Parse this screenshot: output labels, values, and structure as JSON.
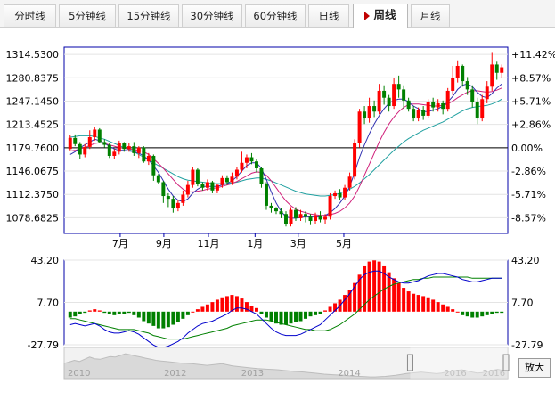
{
  "tabs": [
    {
      "label": "分时线",
      "active": false
    },
    {
      "label": "5分钟线",
      "active": false
    },
    {
      "label": "15分钟线",
      "active": false
    },
    {
      "label": "30分钟线",
      "active": false
    },
    {
      "label": "60分钟线",
      "active": false
    },
    {
      "label": "日线",
      "active": false
    },
    {
      "label": "周线",
      "active": true
    },
    {
      "label": "月线",
      "active": false
    }
  ],
  "zoom_label": "放大",
  "colors": {
    "up": "#ff0000",
    "down": "#008000",
    "ma1": "#3030b0",
    "ma2": "#d0207a",
    "ma3": "#20a0a0",
    "dif": "#0000cc",
    "dea": "#008000",
    "axis": "#0000aa"
  },
  "chart_data": [
    {
      "type": "candlestick",
      "price_ticks": [
        "1314.5300",
        "1280.8375",
        "1247.1450",
        "1213.4525",
        "1179.7600",
        "1146.0675",
        "1112.3750",
        "1078.6825"
      ],
      "pct_ticks": [
        "+11.42%",
        "+8.57%",
        "+5.71%",
        "+2.86%",
        "0.00%",
        "-2.86%",
        "-5.71%",
        "-8.57%"
      ],
      "ylim": [
        1056,
        1325
      ],
      "baseline": 1179.76,
      "month_labels": [
        "7月",
        "9月",
        "11月",
        "1月",
        "3月",
        "5月"
      ],
      "month_positions": [
        10.2,
        19.1,
        28.2,
        37.7,
        46.5,
        55.8
      ],
      "candles": [
        [
          1178,
          1194,
          1176,
          1198
        ],
        [
          1194,
          1185,
          1182,
          1199
        ],
        [
          1185,
          1170,
          1164,
          1188
        ],
        [
          1170,
          1181,
          1166,
          1185
        ],
        [
          1181,
          1195,
          1178,
          1205
        ],
        [
          1195,
          1206,
          1190,
          1210
        ],
        [
          1206,
          1188,
          1186,
          1208
        ],
        [
          1188,
          1184,
          1180,
          1192
        ],
        [
          1184,
          1168,
          1165,
          1186
        ],
        [
          1168,
          1174,
          1164,
          1178
        ],
        [
          1174,
          1186,
          1170,
          1190
        ],
        [
          1186,
          1178,
          1174,
          1188
        ],
        [
          1178,
          1182,
          1174,
          1186
        ],
        [
          1182,
          1172,
          1168,
          1188
        ],
        [
          1172,
          1180,
          1165,
          1182
        ],
        [
          1180,
          1160,
          1158,
          1182
        ],
        [
          1160,
          1168,
          1155,
          1172
        ],
        [
          1168,
          1140,
          1132,
          1170
        ],
        [
          1140,
          1130,
          1128,
          1142
        ],
        [
          1130,
          1110,
          1100,
          1132
        ],
        [
          1110,
          1106,
          1094,
          1114
        ],
        [
          1106,
          1092,
          1086,
          1110
        ],
        [
          1092,
          1100,
          1088,
          1104
        ],
        [
          1100,
          1112,
          1096,
          1118
        ],
        [
          1112,
          1126,
          1108,
          1132
        ],
        [
          1126,
          1148,
          1122,
          1152
        ],
        [
          1148,
          1128,
          1124,
          1150
        ],
        [
          1128,
          1122,
          1118,
          1130
        ],
        [
          1122,
          1130,
          1118,
          1134
        ],
        [
          1130,
          1118,
          1114,
          1132
        ],
        [
          1118,
          1126,
          1114,
          1128
        ],
        [
          1126,
          1136,
          1122,
          1140
        ],
        [
          1136,
          1130,
          1126,
          1140
        ],
        [
          1130,
          1138,
          1126,
          1144
        ],
        [
          1138,
          1148,
          1134,
          1152
        ],
        [
          1148,
          1158,
          1144,
          1174
        ],
        [
          1158,
          1166,
          1150,
          1170
        ],
        [
          1166,
          1160,
          1156,
          1172
        ],
        [
          1160,
          1150,
          1144,
          1164
        ],
        [
          1150,
          1128,
          1122,
          1152
        ],
        [
          1128,
          1096,
          1090,
          1130
        ],
        [
          1096,
          1092,
          1086,
          1100
        ],
        [
          1092,
          1088,
          1084,
          1094
        ],
        [
          1088,
          1084,
          1078,
          1092
        ],
        [
          1084,
          1070,
          1066,
          1088
        ],
        [
          1070,
          1090,
          1066,
          1094
        ],
        [
          1090,
          1078,
          1074,
          1094
        ],
        [
          1078,
          1084,
          1074,
          1090
        ],
        [
          1084,
          1080,
          1072,
          1088
        ],
        [
          1080,
          1074,
          1068,
          1084
        ],
        [
          1074,
          1082,
          1070,
          1086
        ],
        [
          1082,
          1076,
          1072,
          1088
        ],
        [
          1076,
          1080,
          1070,
          1084
        ],
        [
          1080,
          1110,
          1076,
          1114
        ],
        [
          1110,
          1114,
          1106,
          1118
        ],
        [
          1114,
          1108,
          1104,
          1120
        ],
        [
          1108,
          1122,
          1104,
          1126
        ],
        [
          1122,
          1138,
          1118,
          1144
        ],
        [
          1138,
          1186,
          1134,
          1192
        ],
        [
          1186,
          1232,
          1180,
          1236
        ],
        [
          1232,
          1222,
          1214,
          1240
        ],
        [
          1222,
          1240,
          1216,
          1252
        ],
        [
          1240,
          1232,
          1224,
          1248
        ],
        [
          1232,
          1262,
          1228,
          1272
        ],
        [
          1262,
          1252,
          1242,
          1270
        ],
        [
          1252,
          1240,
          1232,
          1256
        ],
        [
          1240,
          1272,
          1236,
          1280
        ],
        [
          1272,
          1264,
          1252,
          1284
        ],
        [
          1264,
          1248,
          1236,
          1270
        ],
        [
          1248,
          1236,
          1232,
          1252
        ],
        [
          1236,
          1222,
          1218,
          1240
        ],
        [
          1222,
          1234,
          1218,
          1238
        ],
        [
          1234,
          1226,
          1220,
          1240
        ],
        [
          1226,
          1246,
          1222,
          1250
        ],
        [
          1246,
          1238,
          1232,
          1252
        ],
        [
          1238,
          1244,
          1232,
          1250
        ],
        [
          1244,
          1236,
          1228,
          1248
        ],
        [
          1236,
          1262,
          1232,
          1266
        ],
        [
          1262,
          1280,
          1256,
          1298
        ],
        [
          1280,
          1298,
          1274,
          1306
        ],
        [
          1298,
          1276,
          1268,
          1300
        ],
        [
          1276,
          1264,
          1256,
          1282
        ],
        [
          1264,
          1246,
          1238,
          1270
        ],
        [
          1246,
          1222,
          1214,
          1252
        ],
        [
          1222,
          1250,
          1218,
          1256
        ],
        [
          1250,
          1268,
          1244,
          1276
        ],
        [
          1268,
          1300,
          1262,
          1318
        ],
        [
          1300,
          1288,
          1278,
          1304
        ],
        [
          1288,
          1296,
          1280,
          1300
        ]
      ],
      "ma1": [
        1170,
        1174,
        1180,
        1184,
        1188,
        1192,
        1190,
        1186,
        1182,
        1178,
        1176,
        1176,
        1175,
        1174,
        1172,
        1168,
        1162,
        1154,
        1144,
        1132,
        1120,
        1110,
        1104,
        1102,
        1106,
        1114,
        1120,
        1124,
        1124,
        1124,
        1124,
        1126,
        1128,
        1132,
        1138,
        1146,
        1154,
        1158,
        1158,
        1150,
        1134,
        1116,
        1100,
        1088,
        1080,
        1078,
        1078,
        1079,
        1080,
        1080,
        1080,
        1080,
        1082,
        1086,
        1092,
        1100,
        1110,
        1124,
        1144,
        1166,
        1184,
        1200,
        1214,
        1226,
        1236,
        1244,
        1248,
        1250,
        1250,
        1246,
        1240,
        1236,
        1232,
        1232,
        1234,
        1236,
        1240,
        1246,
        1254,
        1264,
        1270,
        1272,
        1268,
        1260,
        1254,
        1252,
        1258,
        1266,
        1272
      ],
      "ma2": [
        1175,
        1176,
        1178,
        1180,
        1183,
        1186,
        1187,
        1186,
        1184,
        1182,
        1180,
        1179,
        1178,
        1177,
        1176,
        1174,
        1170,
        1164,
        1157,
        1150,
        1142,
        1134,
        1126,
        1120,
        1116,
        1116,
        1117,
        1118,
        1120,
        1121,
        1122,
        1124,
        1126,
        1128,
        1131,
        1135,
        1139,
        1143,
        1145,
        1144,
        1140,
        1132,
        1122,
        1112,
        1103,
        1096,
        1091,
        1088,
        1086,
        1084,
        1083,
        1082,
        1082,
        1083,
        1085,
        1088,
        1093,
        1100,
        1110,
        1124,
        1140,
        1156,
        1172,
        1188,
        1202,
        1214,
        1224,
        1232,
        1238,
        1242,
        1243,
        1243,
        1242,
        1241,
        1240,
        1240,
        1241,
        1243,
        1247,
        1252,
        1256,
        1260,
        1262,
        1262,
        1261,
        1260,
        1261,
        1263,
        1266
      ],
      "ma3": [
        1195,
        1196,
        1197,
        1197,
        1197,
        1196,
        1194,
        1192,
        1189,
        1186,
        1183,
        1180,
        1177,
        1174,
        1170,
        1166,
        1162,
        1158,
        1154,
        1150,
        1146,
        1142,
        1138,
        1135,
        1133,
        1132,
        1131,
        1130,
        1129,
        1128,
        1128,
        1128,
        1128,
        1129,
        1130,
        1132,
        1134,
        1135,
        1136,
        1136,
        1134,
        1132,
        1129,
        1126,
        1123,
        1120,
        1117,
        1115,
        1113,
        1112,
        1111,
        1110,
        1110,
        1111,
        1112,
        1114,
        1117,
        1120,
        1124,
        1129,
        1135,
        1141,
        1148,
        1155,
        1162,
        1169,
        1176,
        1182,
        1188,
        1193,
        1197,
        1201,
        1205,
        1208,
        1211,
        1214,
        1217,
        1221,
        1225,
        1229,
        1233,
        1236,
        1238,
        1239,
        1240,
        1241,
        1243,
        1246,
        1250
      ]
    },
    {
      "type": "macd",
      "ticks": [
        "43.20",
        "7.70",
        "-27.79"
      ],
      "ylim": [
        -27.79,
        43.2
      ],
      "macd": [
        -5,
        -4,
        -2,
        -1,
        1,
        2,
        1,
        -1,
        -2,
        -3,
        -2,
        -2,
        -1,
        -3,
        -5,
        -8,
        -10,
        -12,
        -14,
        -14,
        -13,
        -11,
        -9,
        -6,
        -3,
        0,
        2,
        4,
        6,
        8,
        10,
        12,
        13,
        14,
        13,
        11,
        8,
        5,
        3,
        -2,
        -5,
        -8,
        -10,
        -11,
        -11,
        -10,
        -9,
        -8,
        -6,
        -4,
        -3,
        -2,
        1,
        4,
        7,
        10,
        14,
        18,
        24,
        31,
        38,
        42,
        43,
        42,
        38,
        33,
        28,
        24,
        20,
        17,
        15,
        14,
        13,
        12,
        10,
        8,
        6,
        4,
        2,
        0,
        -3,
        -4,
        -5,
        -5,
        -4,
        -3,
        -2,
        -1,
        -1
      ],
      "dif": [
        -11,
        -10,
        -11,
        -12,
        -11,
        -10,
        -12,
        -15,
        -17,
        -18,
        -18,
        -17,
        -16,
        -17,
        -19,
        -22,
        -25,
        -28,
        -30,
        -30,
        -29,
        -27,
        -25,
        -22,
        -18,
        -15,
        -12,
        -10,
        -9,
        -8,
        -6,
        -4,
        -2,
        1,
        3,
        3,
        2,
        0,
        -2,
        -6,
        -10,
        -14,
        -17,
        -19,
        -20,
        -20,
        -20,
        -19,
        -17,
        -15,
        -13,
        -11,
        -7,
        -3,
        1,
        5,
        10,
        15,
        21,
        27,
        31,
        33,
        34,
        34,
        32,
        29,
        27,
        25,
        24,
        24,
        25,
        26,
        28,
        30,
        31,
        32,
        32,
        31,
        30,
        29,
        27,
        26,
        25,
        25,
        26,
        27,
        28,
        28,
        28
      ],
      "dea": [
        -6,
        -6,
        -7,
        -8,
        -9,
        -10,
        -11,
        -12,
        -13,
        -14,
        -15,
        -15,
        -15,
        -15,
        -16,
        -17,
        -18,
        -20,
        -21,
        -22,
        -23,
        -23,
        -23,
        -23,
        -22,
        -21,
        -20,
        -19,
        -18,
        -17,
        -16,
        -15,
        -14,
        -12,
        -11,
        -10,
        -9,
        -8,
        -7,
        -7,
        -7,
        -8,
        -9,
        -10,
        -11,
        -12,
        -13,
        -14,
        -15,
        -15,
        -16,
        -16,
        -16,
        -15,
        -13,
        -11,
        -8,
        -5,
        -2,
        2,
        6,
        10,
        13,
        16,
        19,
        21,
        23,
        24,
        25,
        26,
        27,
        27,
        28,
        28,
        29,
        29,
        29,
        29,
        29,
        29,
        29,
        29,
        28,
        28,
        28,
        28,
        28,
        28,
        28
      ]
    },
    {
      "type": "area",
      "nav_years": [
        "2010",
        "2012",
        "2013",
        "2014",
        "2016",
        "2016"
      ],
      "nav_positions": [
        0.0,
        0.217,
        0.391,
        0.609,
        0.848,
        0.935
      ],
      "nav_values": [
        0.55,
        0.6,
        0.66,
        0.62,
        0.7,
        0.78,
        0.72,
        0.7,
        0.75,
        0.8,
        0.78,
        0.84,
        0.9,
        0.86,
        0.82,
        0.78,
        0.74,
        0.7,
        0.66,
        0.64,
        0.62,
        0.6,
        0.58,
        0.56,
        0.55,
        0.54,
        0.52,
        0.5,
        0.48,
        0.5,
        0.52,
        0.54,
        0.5,
        0.46,
        0.44,
        0.42,
        0.4,
        0.38,
        0.36,
        0.35,
        0.34,
        0.33,
        0.32,
        0.3,
        0.28,
        0.26,
        0.25,
        0.24,
        0.22,
        0.2,
        0.18,
        0.16,
        0.15,
        0.14,
        0.13,
        0.12,
        0.1,
        0.09,
        0.08,
        0.07,
        0.06,
        0.06,
        0.07,
        0.08,
        0.1,
        0.12,
        0.15,
        0.18,
        0.2,
        0.22,
        0.24,
        0.22,
        0.2,
        0.18,
        0.2,
        0.24,
        0.28,
        0.3,
        0.32,
        0.28,
        0.24,
        0.2,
        0.22,
        0.26,
        0.3,
        0.34,
        0.3,
        0.28
      ]
    }
  ]
}
